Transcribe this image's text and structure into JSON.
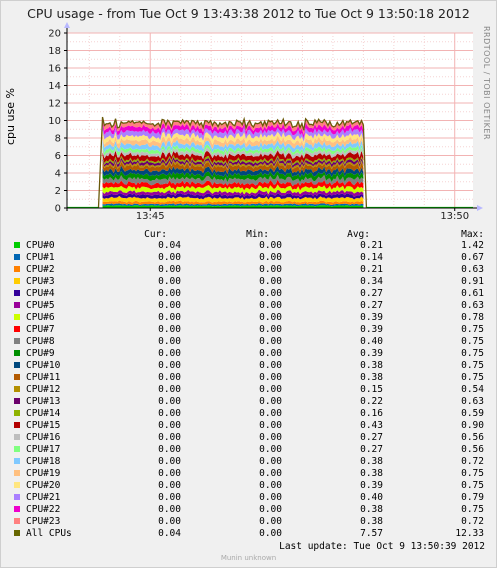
{
  "title": "CPU usage - from Tue Oct  9 13:43:38 2012 to Tue Oct  9 13:50:18 2012",
  "side_label": "RRDTOOL / TOBI OETIKER",
  "footer": {
    "last_update": "Last update:  Tue Oct  9 13:50:39 2012",
    "credit": "Munin unknown"
  },
  "legend_header": {
    "cur": "Cur:",
    "min": "Min:",
    "avg": "Avg:",
    "max": "Max:"
  },
  "chart_data": {
    "type": "area",
    "title": "CPU usage - from Tue Oct  9 13:43:38 2012 to Tue Oct  9 13:50:18 2012",
    "ylabel": "cpu use %",
    "xlabel": "",
    "ylim": [
      0,
      20
    ],
    "yticks": [
      "0",
      "2",
      "4",
      "6",
      "8",
      "10",
      "12",
      "14",
      "16",
      "18",
      "20"
    ],
    "xticks": [
      "13:45",
      "13:50"
    ],
    "x_range": [
      "13:43:38",
      "13:50:18"
    ],
    "active_range": [
      "13:44:13",
      "13:48:30"
    ],
    "grid": true,
    "stacked": true,
    "total_line_color": "#6b5a0a",
    "series": [
      {
        "name": "CPU#0",
        "color": "#00cc00",
        "cur": "0.04",
        "min": "0.00",
        "avg": "0.21",
        "max": "1.42",
        "avg_value": 0.21
      },
      {
        "name": "CPU#1",
        "color": "#0066b3",
        "cur": "0.00",
        "min": "0.00",
        "avg": "0.14",
        "max": "0.67",
        "avg_value": 0.14
      },
      {
        "name": "CPU#2",
        "color": "#ff8000",
        "cur": "0.00",
        "min": "0.00",
        "avg": "0.21",
        "max": "0.63",
        "avg_value": 0.21
      },
      {
        "name": "CPU#3",
        "color": "#ffcc00",
        "cur": "0.00",
        "min": "0.00",
        "avg": "0.34",
        "max": "0.91",
        "avg_value": 0.34
      },
      {
        "name": "CPU#4",
        "color": "#330099",
        "cur": "0.00",
        "min": "0.00",
        "avg": "0.27",
        "max": "0.61",
        "avg_value": 0.27
      },
      {
        "name": "CPU#5",
        "color": "#990099",
        "cur": "0.00",
        "min": "0.00",
        "avg": "0.27",
        "max": "0.63",
        "avg_value": 0.27
      },
      {
        "name": "CPU#6",
        "color": "#ccff00",
        "cur": "0.00",
        "min": "0.00",
        "avg": "0.39",
        "max": "0.78",
        "avg_value": 0.39
      },
      {
        "name": "CPU#7",
        "color": "#ff0000",
        "cur": "0.00",
        "min": "0.00",
        "avg": "0.39",
        "max": "0.75",
        "avg_value": 0.39
      },
      {
        "name": "CPU#8",
        "color": "#808080",
        "cur": "0.00",
        "min": "0.00",
        "avg": "0.40",
        "max": "0.75",
        "avg_value": 0.4
      },
      {
        "name": "CPU#9",
        "color": "#008f00",
        "cur": "0.00",
        "min": "0.00",
        "avg": "0.39",
        "max": "0.75",
        "avg_value": 0.39
      },
      {
        "name": "CPU#10",
        "color": "#00487d",
        "cur": "0.00",
        "min": "0.00",
        "avg": "0.38",
        "max": "0.75",
        "avg_value": 0.38
      },
      {
        "name": "CPU#11",
        "color": "#b35a00",
        "cur": "0.00",
        "min": "0.00",
        "avg": "0.38",
        "max": "0.75",
        "avg_value": 0.38
      },
      {
        "name": "CPU#12",
        "color": "#b38f00",
        "cur": "0.00",
        "min": "0.00",
        "avg": "0.15",
        "max": "0.54",
        "avg_value": 0.15
      },
      {
        "name": "CPU#13",
        "color": "#6b006b",
        "cur": "0.00",
        "min": "0.00",
        "avg": "0.22",
        "max": "0.63",
        "avg_value": 0.22
      },
      {
        "name": "CPU#14",
        "color": "#8fb300",
        "cur": "0.00",
        "min": "0.00",
        "avg": "0.16",
        "max": "0.59",
        "avg_value": 0.16
      },
      {
        "name": "CPU#15",
        "color": "#b30000",
        "cur": "0.00",
        "min": "0.00",
        "avg": "0.43",
        "max": "0.90",
        "avg_value": 0.43
      },
      {
        "name": "CPU#16",
        "color": "#bebebe",
        "cur": "0.00",
        "min": "0.00",
        "avg": "0.27",
        "max": "0.56",
        "avg_value": 0.27
      },
      {
        "name": "CPU#17",
        "color": "#80ff80",
        "cur": "0.00",
        "min": "0.00",
        "avg": "0.27",
        "max": "0.56",
        "avg_value": 0.27
      },
      {
        "name": "CPU#18",
        "color": "#80c9ff",
        "cur": "0.00",
        "min": "0.00",
        "avg": "0.38",
        "max": "0.72",
        "avg_value": 0.38
      },
      {
        "name": "CPU#19",
        "color": "#ffc080",
        "cur": "0.00",
        "min": "0.00",
        "avg": "0.38",
        "max": "0.75",
        "avg_value": 0.38
      },
      {
        "name": "CPU#20",
        "color": "#ffe680",
        "cur": "0.00",
        "min": "0.00",
        "avg": "0.39",
        "max": "0.75",
        "avg_value": 0.39
      },
      {
        "name": "CPU#21",
        "color": "#aa80ff",
        "cur": "0.00",
        "min": "0.00",
        "avg": "0.40",
        "max": "0.79",
        "avg_value": 0.4
      },
      {
        "name": "CPU#22",
        "color": "#ee00cc",
        "cur": "0.00",
        "min": "0.00",
        "avg": "0.38",
        "max": "0.75",
        "avg_value": 0.38
      },
      {
        "name": "CPU#23",
        "color": "#ff8080",
        "cur": "0.00",
        "min": "0.00",
        "avg": "0.38",
        "max": "0.72",
        "avg_value": 0.38
      },
      {
        "name": "All CPUs",
        "color": "#666600",
        "cur": "0.04",
        "min": "0.00",
        "avg": "7.57",
        "max": "12.33",
        "avg_value": 7.57
      }
    ]
  }
}
